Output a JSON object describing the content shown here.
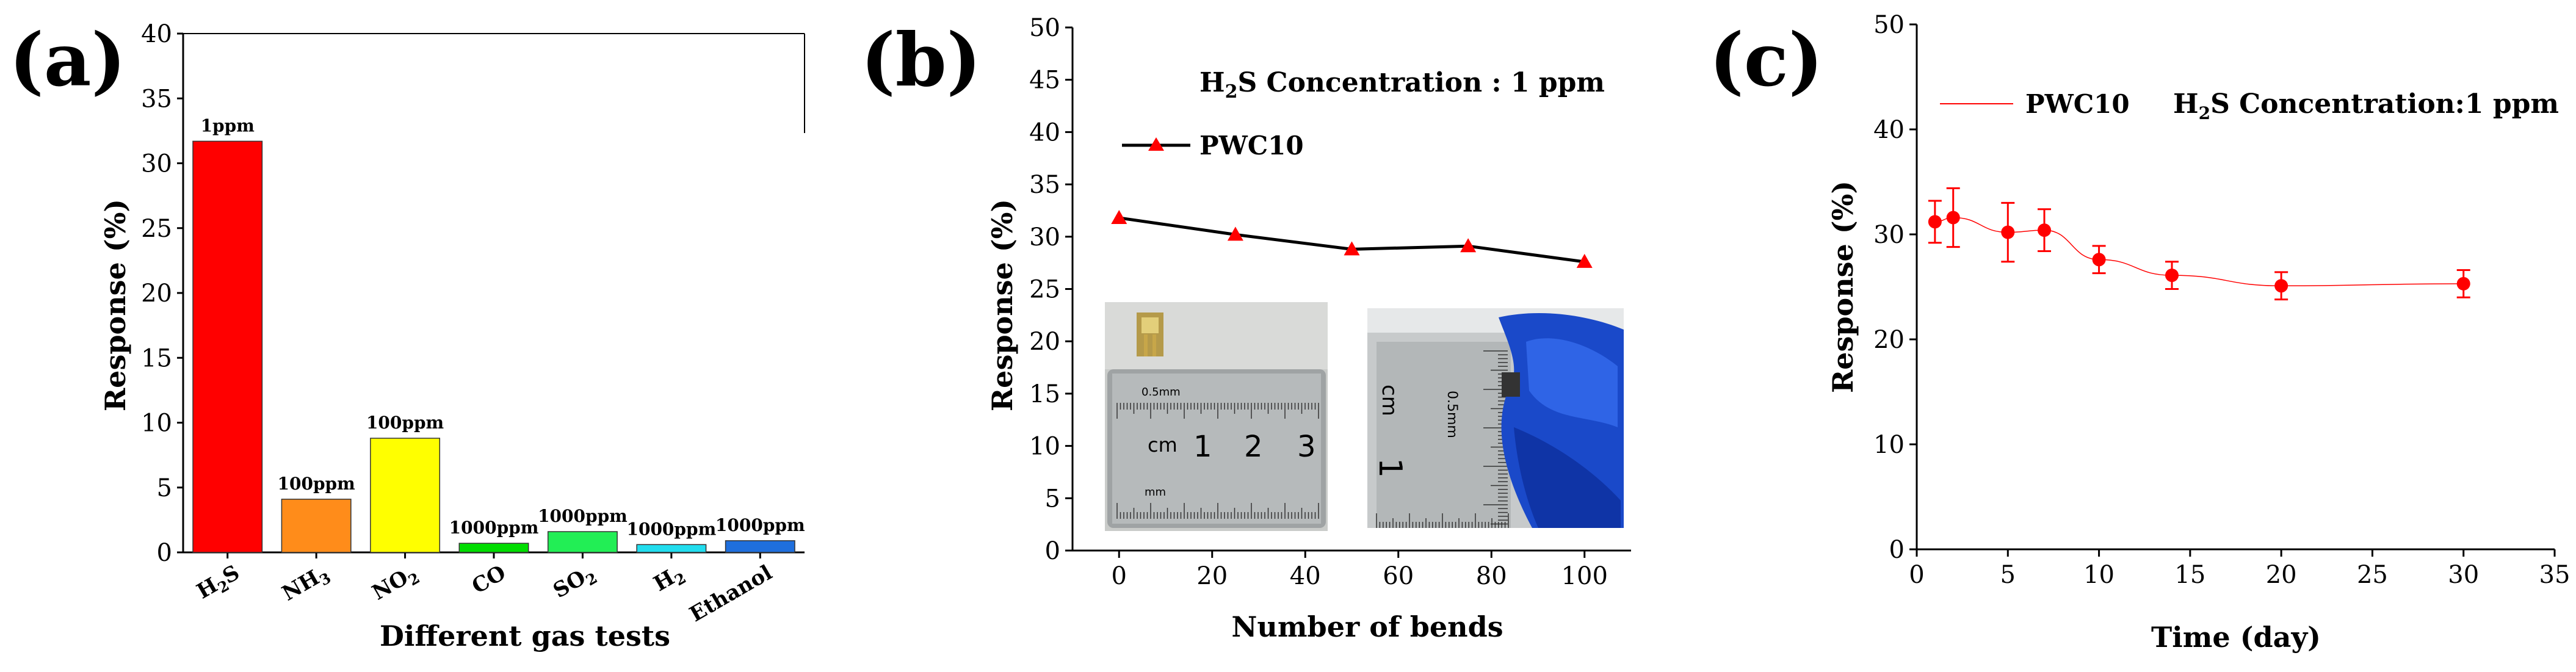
{
  "chart_data": [
    {
      "id": "a",
      "panel_label": "(a)",
      "type": "bar",
      "categories": [
        "H2S",
        "NH3",
        "NO2",
        "CO",
        "SO2",
        "H2",
        "Ethanol"
      ],
      "category_display": [
        {
          "base": "H",
          "sub": "2",
          "tail": "S"
        },
        {
          "base": "NH",
          "sub": "3",
          "tail": ""
        },
        {
          "base": "NO",
          "sub": "2",
          "tail": ""
        },
        {
          "base": "CO",
          "sub": "",
          "tail": ""
        },
        {
          "base": "SO",
          "sub": "2",
          "tail": ""
        },
        {
          "base": "H",
          "sub": "2",
          "tail": ""
        },
        {
          "base": "Ethanol",
          "sub": "",
          "tail": ""
        }
      ],
      "values": [
        31.7,
        4.1,
        8.8,
        0.7,
        1.6,
        0.6,
        0.9
      ],
      "bar_labels": [
        "1ppm",
        "100ppm",
        "100ppm",
        "1000ppm",
        "1000ppm",
        "1000ppm",
        "1000ppm"
      ],
      "colors": [
        "#ff0000",
        "#ff8c1a",
        "#ffff00",
        "#00dd00",
        "#22ee55",
        "#22ddee",
        "#1f6fdd"
      ],
      "xlabel": "Different gas tests",
      "ylabel": "Response (%)",
      "ylim": [
        0,
        40
      ],
      "yticks": [
        0,
        5,
        10,
        15,
        20,
        25,
        30,
        35,
        40
      ]
    },
    {
      "id": "b",
      "panel_label": "(b)",
      "type": "line",
      "x": [
        0,
        25,
        50,
        75,
        100
      ],
      "series": [
        {
          "name": "PWC10",
          "values": [
            31.8,
            30.2,
            28.8,
            29.1,
            27.6
          ],
          "line_color": "#000000",
          "marker_color": "#ff0000"
        }
      ],
      "annotation": {
        "text_pre": "H",
        "text_sub": "2",
        "text_post": "S Concentration :  1 ppm"
      },
      "xlabel": "Number of bends",
      "ylabel": "Response (%)",
      "xlim": [
        -10,
        110
      ],
      "ylim": [
        0,
        50
      ],
      "xticks": [
        0,
        20,
        40,
        60,
        80,
        100
      ],
      "yticks": [
        0,
        5,
        10,
        15,
        20,
        25,
        30,
        35,
        40,
        45,
        50
      ],
      "inset_photos": [
        {
          "name": "flat-sensor-photo",
          "ruler_labels": [
            "cm",
            "1",
            "2",
            "3"
          ],
          "ruler_small": [
            "0.5mm",
            "mm"
          ]
        },
        {
          "name": "bent-sensor-photo",
          "ruler_labels": [
            "cm",
            "1"
          ],
          "ruler_small": [
            "0.5mm"
          ]
        }
      ]
    },
    {
      "id": "c",
      "panel_label": "(c)",
      "type": "line",
      "x": [
        1,
        2,
        5,
        7,
        10,
        14,
        20,
        30
      ],
      "series": [
        {
          "name": "PWC10",
          "values": [
            31.2,
            31.6,
            30.2,
            30.4,
            27.6,
            26.1,
            25.1,
            25.3
          ],
          "errors": [
            2.0,
            2.8,
            2.8,
            2.0,
            1.3,
            1.3,
            1.3,
            1.3
          ],
          "color": "#ff0000"
        }
      ],
      "annotation": {
        "text_pre": "H",
        "text_sub": "2",
        "text_post": "S Concentration:1 ppm"
      },
      "xlabel": "Time (day)",
      "ylabel": "Response (%)",
      "xlim": [
        0,
        35
      ],
      "ylim": [
        0,
        50
      ],
      "xticks": [
        0,
        5,
        10,
        15,
        20,
        25,
        30,
        35
      ],
      "yticks": [
        0,
        10,
        20,
        30,
        40,
        50
      ]
    }
  ]
}
